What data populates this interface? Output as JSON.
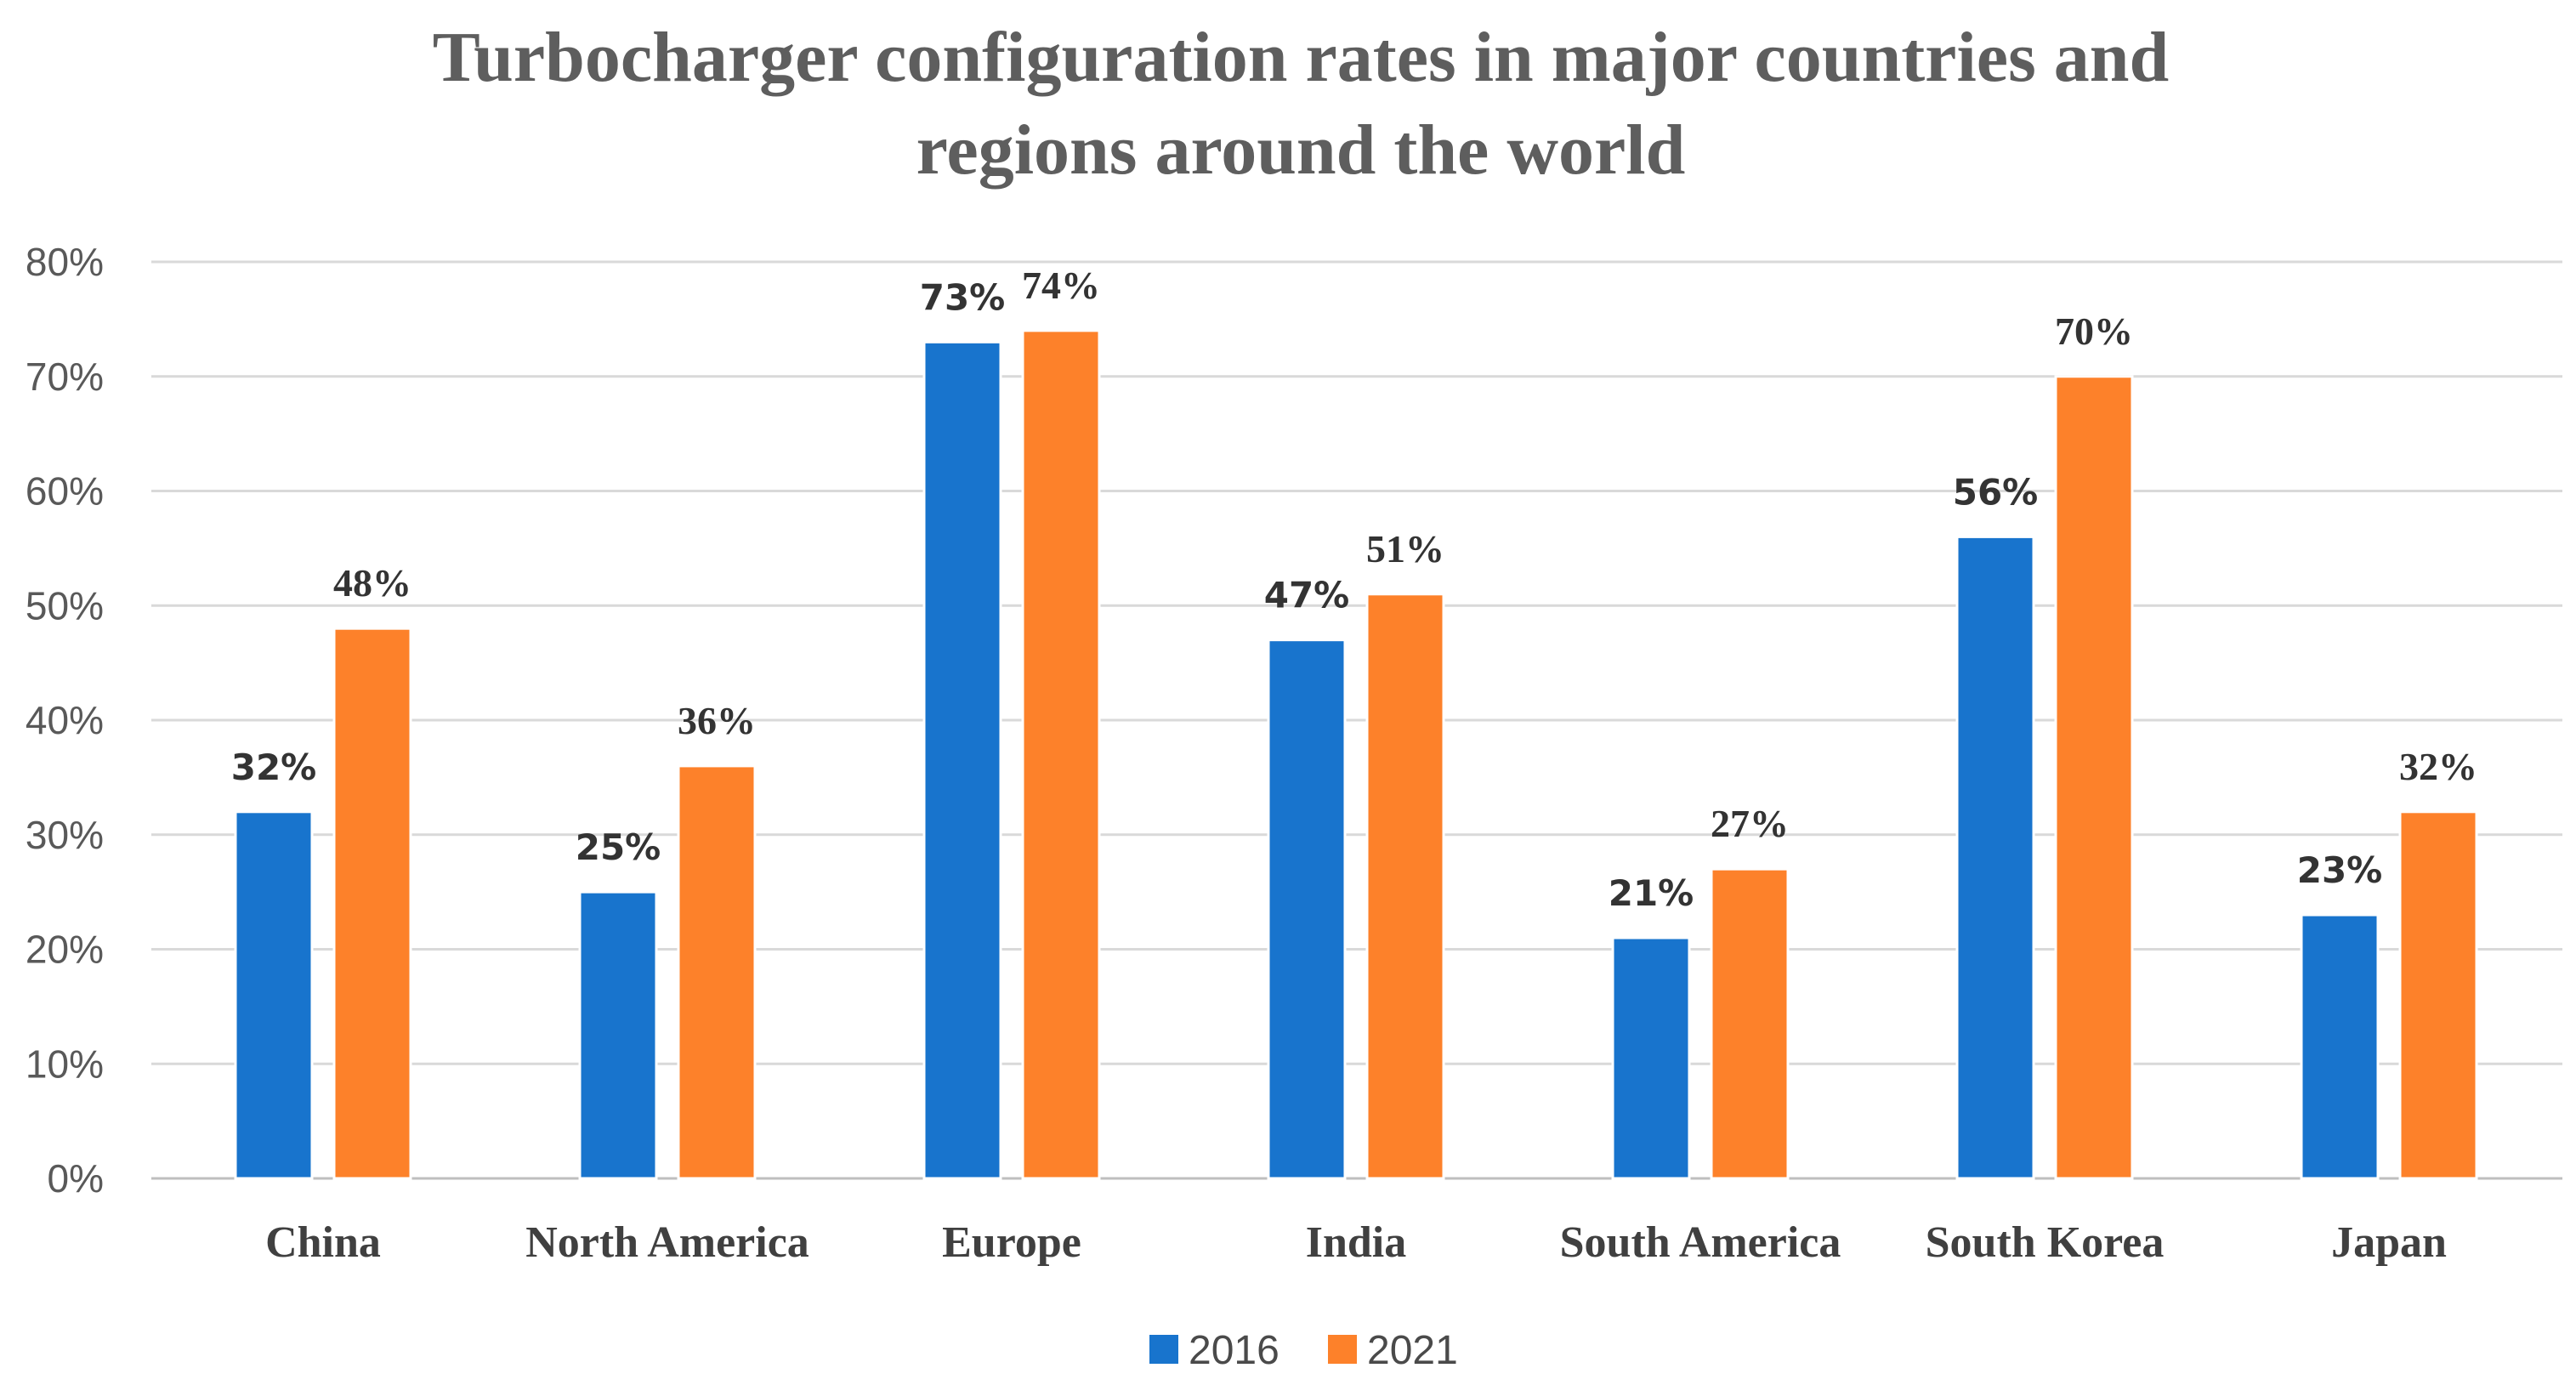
{
  "chart_data": {
    "type": "bar",
    "title_lines": [
      "Turbocharger configuration rates in major countries and",
      "regions around the world"
    ],
    "categories": [
      "China",
      "North America",
      "Europe",
      "India",
      "South America",
      "South Korea",
      "Japan"
    ],
    "series": [
      {
        "name": "2016",
        "color": "#1874cd",
        "values": [
          32,
          25,
          73,
          47,
          21,
          56,
          23
        ],
        "labels": [
          "32%",
          "25%",
          "73%",
          "47%",
          "21%",
          "56%",
          "23%"
        ]
      },
      {
        "name": "2021",
        "color": "#fd812a",
        "values": [
          48,
          36,
          74,
          51,
          27,
          70,
          32
        ],
        "labels": [
          "48%",
          "36%",
          "74%",
          "51%",
          "27%",
          "70%",
          "32%"
        ]
      }
    ],
    "yticks": [
      "0%",
      "10%",
      "20%",
      "30%",
      "40%",
      "50%",
      "60%",
      "70%",
      "80%"
    ],
    "ylim": [
      0,
      80
    ],
    "grid": true,
    "legend_position": "bottom"
  }
}
